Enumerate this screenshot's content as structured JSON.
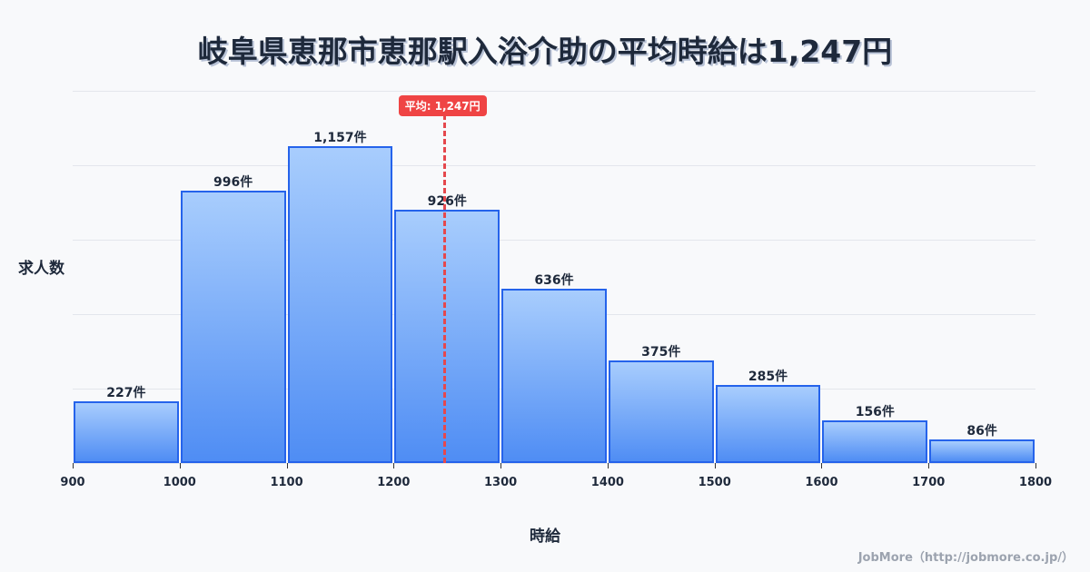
{
  "title": "岐阜県恵那市恵那駅入浴介助の平均時給は1,247円",
  "average_badge": "平均: 1,247円",
  "ylabel": "求人数",
  "xlabel": "時給",
  "credit": "JobMore（http://jobmore.co.jp/）",
  "colors": {
    "bar_border": "#2563eb",
    "bar_top": "#a8cdfd",
    "bar_bottom": "#4f8df4",
    "average_line": "#e5484d",
    "badge": "#ef4444"
  },
  "chart_data": {
    "type": "bar",
    "title": "岐阜県恵那市恵那駅入浴介助の平均時給は1,247円",
    "xlabel": "時給",
    "ylabel": "求人数",
    "bin_edges": [
      900,
      1000,
      1100,
      1200,
      1300,
      1400,
      1500,
      1600,
      1700,
      1800
    ],
    "categories": [
      "900-1000",
      "1000-1100",
      "1100-1200",
      "1200-1300",
      "1300-1400",
      "1400-1500",
      "1500-1600",
      "1600-1700",
      "1700-1800"
    ],
    "values": [
      227,
      996,
      1157,
      926,
      636,
      375,
      285,
      156,
      86
    ],
    "value_labels": [
      "227件",
      "996件",
      "1,157件",
      "926件",
      "636件",
      "375件",
      "285件",
      "156件",
      "86件"
    ],
    "x_ticks": [
      "900",
      "1000",
      "1100",
      "1200",
      "1300",
      "1400",
      "1500",
      "1600",
      "1700",
      "1800"
    ],
    "average": 1247,
    "average_label": "平均: 1,247円",
    "ylim": [
      0,
      1360
    ],
    "grid": true,
    "legend": "none"
  }
}
